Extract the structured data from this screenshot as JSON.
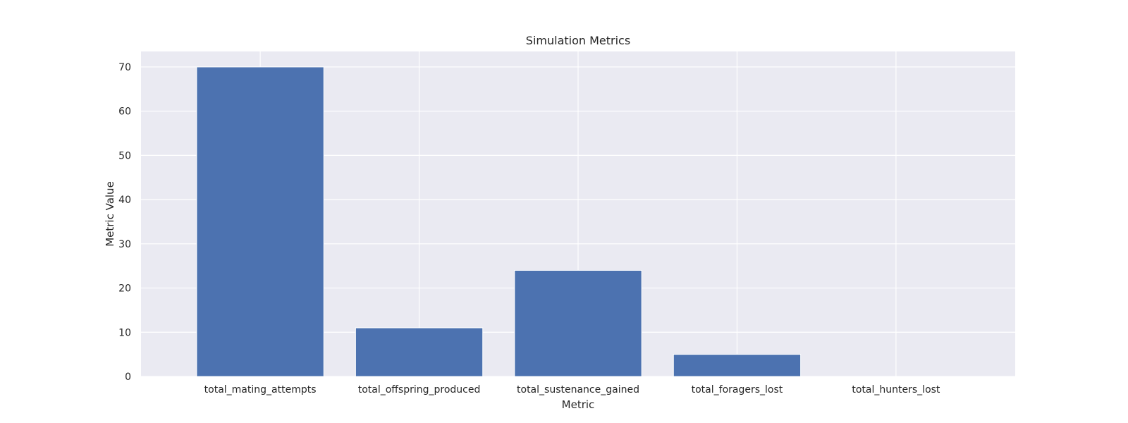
{
  "chart_data": {
    "type": "bar",
    "title": "Simulation Metrics",
    "xlabel": "Metric",
    "ylabel": "Metric Value",
    "categories": [
      "total_mating_attempts",
      "total_offspring_produced",
      "total_sustenance_gained",
      "total_foragers_lost",
      "total_hunters_lost"
    ],
    "values": [
      70,
      11,
      24,
      5,
      0
    ],
    "ylim": [
      0,
      73.5
    ],
    "yticks": [
      0,
      10,
      20,
      30,
      40,
      50,
      60,
      70
    ],
    "grid": true,
    "legend": "none",
    "colors": {
      "bar": "#4c72b0",
      "plot_background": "#eaeaf2",
      "grid": "#ffffff",
      "text": "#262626"
    }
  }
}
